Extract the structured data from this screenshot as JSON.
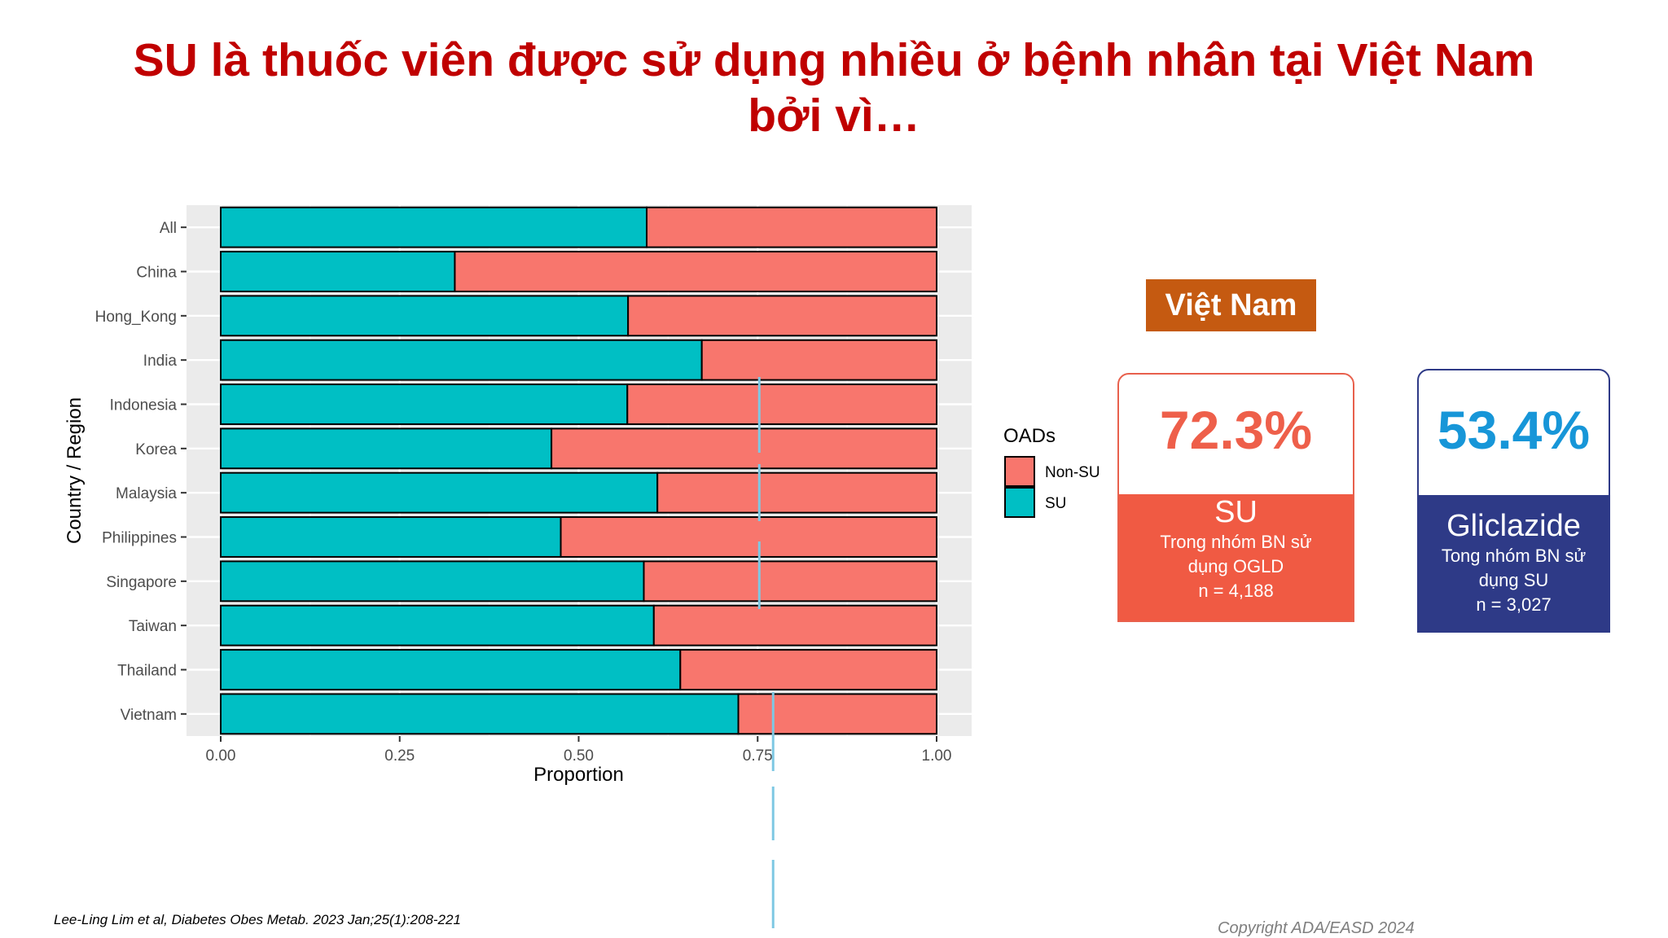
{
  "slide": {
    "title_line1": "SU là thuốc viên được sử dụng nhiều ở bệnh nhân tại Việt Nam",
    "title_line2": "bởi vì…",
    "reference": "Lee-Ling Lim et al, Diabetes Obes Metab. 2023 Jan;25(1):208-221",
    "copyright": "Copyright ADA/EASD 2024"
  },
  "stats": {
    "region": "Việt Nam",
    "su": {
      "pct": "72.3%",
      "name": "SU",
      "desc_line1": "Trong nhóm BN sử",
      "desc_line2": "dụng OGLD",
      "n": "n = 4,188"
    },
    "gliclazide": {
      "pct": "53.4%",
      "name": "Gliclazide",
      "desc_line1": "Tong nhóm BN sử",
      "desc_line2": "dụng SU",
      "n": "n = 3,027"
    }
  },
  "colors": {
    "su": "#00bfc4",
    "non_su": "#f8766d",
    "title": "#c00000",
    "tag": "#c55a11",
    "su_card": "#f05a43",
    "gliclazide_card": "#2e3a87",
    "gliclazide_pct": "#1796d8"
  },
  "chart_data": {
    "type": "bar",
    "orientation": "horizontal",
    "stacked": true,
    "categories": [
      "All",
      "China",
      "Hong_Kong",
      "India",
      "Indonesia",
      "Korea",
      "Malaysia",
      "Philippines",
      "Singapore",
      "Taiwan",
      "Thailand",
      "Vietnam"
    ],
    "series": [
      {
        "name": "SU",
        "values": [
          0.595,
          0.327,
          0.569,
          0.672,
          0.568,
          0.462,
          0.61,
          0.475,
          0.591,
          0.605,
          0.642,
          0.723
        ]
      },
      {
        "name": "Non-SU",
        "values": [
          0.405,
          0.673,
          0.431,
          0.328,
          0.432,
          0.538,
          0.39,
          0.525,
          0.409,
          0.395,
          0.358,
          0.277
        ]
      }
    ],
    "xlabel": "Proportion",
    "ylabel": "Country / Region",
    "xlim": [
      0,
      1
    ],
    "xticks": [
      "0.00",
      "0.25",
      "0.50",
      "0.75",
      "1.00"
    ],
    "legend_title": "OADs",
    "legend_order": [
      "Non-SU",
      "SU"
    ],
    "legend_position": "right",
    "grid": true,
    "reference_line_x": 0.75
  }
}
